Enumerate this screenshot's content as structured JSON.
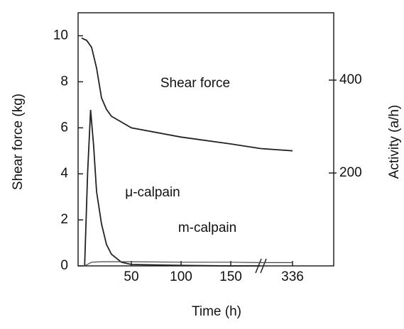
{
  "chart_data": {
    "type": "line",
    "xlabel": "Time (h)",
    "ylabel": "Shear force (kg)",
    "y2label": "Activity (a/h)",
    "xlim": [
      0,
      336
    ],
    "xticks": [
      50,
      100,
      150,
      336
    ],
    "ylim": [
      0,
      11
    ],
    "yticks": [
      0,
      2,
      4,
      6,
      8,
      10
    ],
    "y2lim": [
      0,
      545
    ],
    "y2ticks": [
      200,
      400
    ],
    "series": [
      {
        "name": "Shear force",
        "color": "#222222",
        "axis": "y",
        "x": [
          0,
          5,
          10,
          15,
          20,
          25,
          30,
          50,
          100,
          150,
          180,
          336
        ],
        "values": [
          9.9,
          9.8,
          9.5,
          8.6,
          7.3,
          6.8,
          6.5,
          6.0,
          5.6,
          5.3,
          5.1,
          5.0
        ]
      },
      {
        "name": "μ-calpain",
        "color": "#222222",
        "axis": "y2",
        "x": [
          3,
          6,
          9,
          12,
          15,
          20,
          25,
          30,
          40,
          50,
          100,
          150,
          180
        ],
        "values": [
          0,
          200,
          336,
          260,
          160,
          90,
          46,
          25,
          8,
          3,
          1,
          0,
          0
        ]
      },
      {
        "name": "m-calpain",
        "color": "#444444",
        "axis": "y2",
        "x": [
          3,
          10,
          20,
          50,
          100,
          150,
          180,
          336
        ],
        "values": [
          0,
          8,
          9,
          9,
          8,
          8,
          7,
          7
        ]
      }
    ]
  }
}
